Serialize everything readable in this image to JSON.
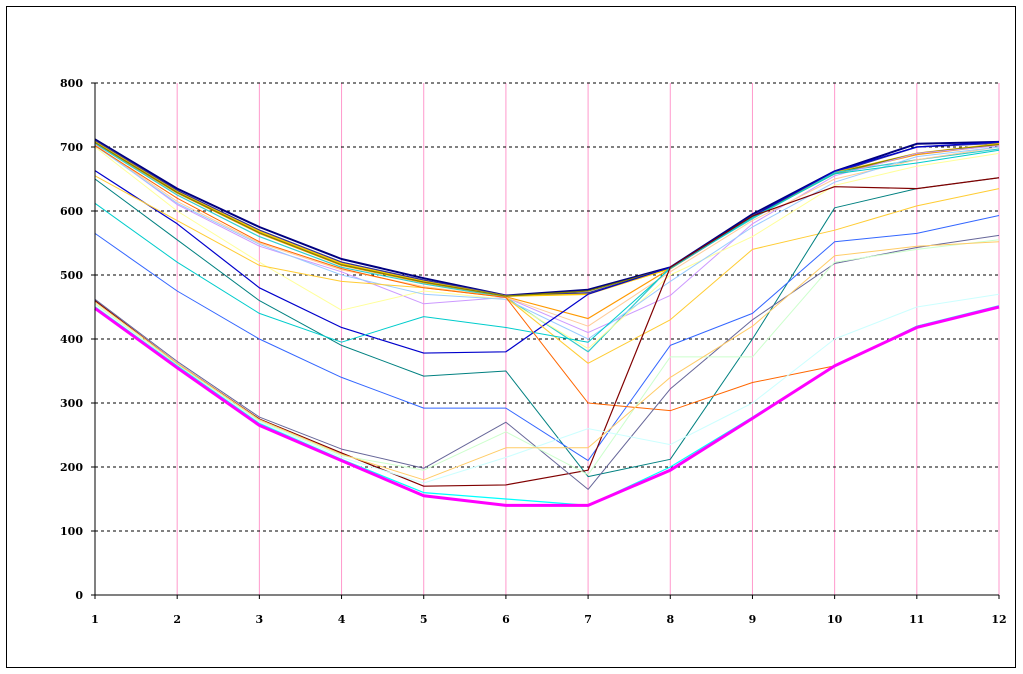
{
  "chart_data": {
    "type": "line",
    "title": "",
    "xlabel": "",
    "ylabel": "",
    "x": [
      1,
      2,
      3,
      4,
      5,
      6,
      7,
      8,
      9,
      10,
      11,
      12
    ],
    "x_tick_labels": [
      "1",
      "2",
      "3",
      "4",
      "5",
      "6",
      "7",
      "8",
      "9",
      "10",
      "11",
      "12"
    ],
    "y_tick_labels": [
      "0",
      "100",
      "200",
      "300",
      "400",
      "500",
      "600",
      "700",
      "800"
    ],
    "ylim": [
      0,
      800
    ],
    "xlim": [
      1,
      12
    ],
    "vertical_grid": true,
    "horizontal_grid": "dashed",
    "legend": "none",
    "colors": {
      "vertical_grid": "#ff99cc",
      "horizontal_grid": "#000000",
      "axis": "#000000"
    },
    "series": [
      {
        "color": "#000080",
        "values": [
          712,
          635,
          575,
          525,
          495,
          468,
          477,
          512,
          595,
          662,
          705,
          708
        ],
        "width": 2
      },
      {
        "color": "#333399",
        "values": [
          710,
          632,
          570,
          520,
          492,
          468,
          472,
          510,
          590,
          660,
          700,
          706
        ],
        "width": 1.5
      },
      {
        "color": "#ffcc00",
        "values": [
          708,
          630,
          568,
          518,
          490,
          467,
          470,
          510,
          592,
          660,
          690,
          705
        ],
        "width": 1.5
      },
      {
        "color": "#ff9900",
        "values": [
          706,
          628,
          565,
          515,
          488,
          466,
          432,
          510,
          590,
          658,
          688,
          703
        ],
        "width": 1.2
      },
      {
        "color": "#808000",
        "values": [
          707,
          629,
          566,
          516,
          489,
          467,
          475,
          511,
          591,
          659,
          690,
          704
        ],
        "width": 1.2
      },
      {
        "color": "#33cccc",
        "values": [
          705,
          625,
          560,
          512,
          486,
          465,
          380,
          512,
          588,
          660,
          680,
          697
        ],
        "width": 1.2
      },
      {
        "color": "#cc99ff",
        "values": [
          704,
          610,
          545,
          505,
          455,
          465,
          410,
          468,
          580,
          655,
          690,
          702
        ],
        "width": 1
      },
      {
        "color": "#ffcc99",
        "values": [
          703,
          615,
          550,
          508,
          482,
          465,
          420,
          505,
          585,
          650,
          680,
          700
        ],
        "width": 1
      },
      {
        "color": "#ffff99",
        "values": [
          700,
          600,
          520,
          445,
          475,
          462,
          385,
          500,
          560,
          640,
          670,
          690
        ],
        "width": 1
      },
      {
        "color": "#99ccff",
        "values": [
          702,
          612,
          548,
          500,
          470,
          462,
          400,
          490,
          575,
          645,
          685,
          700
        ],
        "width": 1
      },
      {
        "color": "#0000cc",
        "values": [
          663,
          580,
          480,
          418,
          378,
          380,
          470,
          512,
          592,
          662,
          700,
          708
        ],
        "width": 1.2
      },
      {
        "color": "#ffcc33",
        "values": [
          655,
          585,
          515,
          490,
          480,
          465,
          362,
          430,
          540,
          570,
          608,
          635
        ],
        "width": 1
      },
      {
        "color": "#008080",
        "values": [
          650,
          555,
          460,
          390,
          342,
          350,
          185,
          212,
          400,
          605,
          635,
          652
        ],
        "width": 1
      },
      {
        "color": "#00cccc",
        "values": [
          612,
          520,
          440,
          395,
          435,
          418,
          395,
          510,
          590,
          658,
          675,
          695
        ],
        "width": 1
      },
      {
        "color": "#3366ff",
        "values": [
          565,
          475,
          400,
          340,
          292,
          292,
          210,
          390,
          440,
          552,
          565,
          593
        ],
        "width": 1
      },
      {
        "color": "#ff6600",
        "values": [
          702,
          620,
          552,
          510,
          480,
          465,
          300,
          288,
          332,
          358,
          420,
          450
        ],
        "width": 1
      },
      {
        "color": "#800000",
        "values": [
          460,
          362,
          275,
          222,
          170,
          172,
          195,
          512,
          592,
          638,
          635,
          652
        ],
        "width": 1.2
      },
      {
        "color": "#666699",
        "values": [
          462,
          365,
          278,
          228,
          198,
          270,
          165,
          322,
          430,
          518,
          543,
          562
        ],
        "width": 1
      },
      {
        "color": "#ccffcc",
        "values": [
          455,
          360,
          272,
          218,
          195,
          255,
          188,
          372,
          372,
          520,
          540,
          555
        ],
        "width": 1
      },
      {
        "color": "#ccffff",
        "values": [
          452,
          358,
          270,
          215,
          175,
          215,
          260,
          235,
          300,
          400,
          450,
          470
        ],
        "width": 1
      },
      {
        "color": "#ffcc66",
        "values": [
          458,
          362,
          274,
          220,
          180,
          230,
          230,
          340,
          420,
          530,
          545,
          552
        ],
        "width": 1
      },
      {
        "color": "#00ffff",
        "values": [
          450,
          358,
          268,
          212,
          160,
          150,
          140,
          200,
          278,
          358,
          420,
          452
        ],
        "width": 1.2
      },
      {
        "color": "#ff00ff",
        "values": [
          448,
          355,
          265,
          210,
          155,
          140,
          140,
          195,
          276,
          358,
          418,
          450
        ],
        "width": 3
      }
    ]
  }
}
